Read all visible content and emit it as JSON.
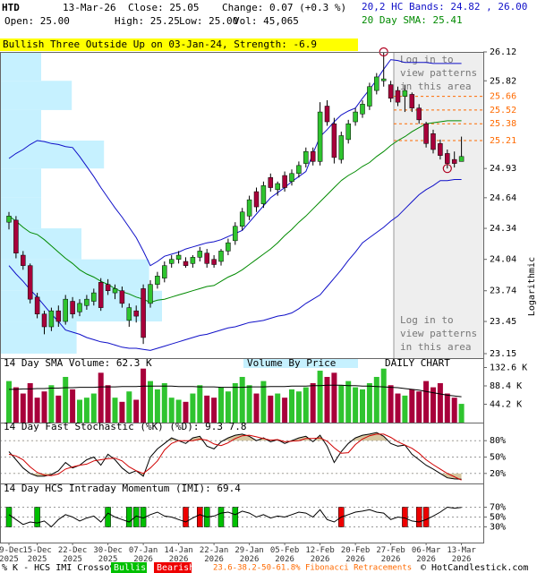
{
  "header": {
    "symbol": "HTD",
    "date": "13-Mar-26",
    "close": "Close: 25.05",
    "change": "Change: 0.07 (+0.3 %)",
    "open": "Open: 25.00",
    "high": "High: 25.25",
    "low": "Low: 25.00",
    "vol": "Vol: 45,065",
    "bands": "20,2 HC Bands: 24.82 , 26.00",
    "sma": "20 Day SMA: 25.41"
  },
  "banner": "Bullish Three Outside Up on 03-Jan-24, Strength: -6.9",
  "notice": [
    "Log in to",
    "view patterns",
    "in this area"
  ],
  "footer": {
    "prefix": "% K - HCS IMI Crossover,",
    "bullish": "Bullish",
    "bearish": "Bearish",
    "fib": "23.6-38.2-50-61.8% Fibonacci Retracements",
    "credit": "© HotCandlestick.com"
  },
  "chart_data": [
    {
      "type": "candlestick",
      "categories": [
        "09-Dec 2025",
        null,
        null,
        null,
        "15-Dec 2025",
        null,
        null,
        null,
        null,
        "22-Dec 2025",
        null,
        null,
        null,
        null,
        "30-Dec 2025",
        null,
        null,
        null,
        null,
        "07-Jan 2026",
        null,
        null,
        null,
        null,
        "14-Jan 2026",
        null,
        null,
        null,
        null,
        "22-Jan 2026",
        null,
        null,
        null,
        null,
        "29-Jan 2026",
        null,
        null,
        null,
        null,
        "05-Feb 2026",
        null,
        null,
        null,
        null,
        "12-Feb 2026",
        null,
        null,
        null,
        null,
        "20-Feb 2026",
        null,
        null,
        null,
        null,
        "27-Feb 2026",
        null,
        null,
        null,
        null,
        "06-Mar 2026",
        null,
        null,
        null,
        null,
        "13-Mar 2026"
      ],
      "open": [
        24.4,
        24.42,
        24.08,
        23.98,
        23.68,
        23.52,
        23.4,
        23.55,
        23.45,
        23.64,
        23.54,
        23.6,
        23.64,
        23.82,
        23.8,
        23.72,
        23.74,
        23.46,
        23.55,
        23.76,
        23.62,
        23.8,
        23.86,
        24.0,
        24.04,
        24.02,
        24.0,
        24.06,
        24.1,
        24.04,
        24.02,
        24.12,
        24.22,
        24.36,
        24.46,
        24.7,
        24.58,
        24.84,
        24.72,
        24.86,
        24.8,
        24.88,
        24.98,
        25.1,
        25.0,
        25.56,
        25.38,
        25.02,
        25.22,
        25.4,
        25.48,
        25.56,
        25.72,
        25.82,
        25.78,
        25.72,
        25.66,
        25.68,
        25.54,
        25.38,
        25.28,
        25.18,
        25.08,
        25.02,
        25.0
      ],
      "high": [
        24.5,
        24.46,
        24.12,
        24.0,
        23.72,
        23.55,
        23.58,
        23.6,
        23.7,
        23.68,
        23.66,
        23.7,
        23.76,
        23.86,
        23.85,
        23.8,
        23.78,
        23.62,
        23.6,
        23.8,
        23.84,
        23.92,
        24.02,
        24.08,
        24.12,
        24.06,
        24.08,
        24.16,
        24.14,
        24.08,
        24.14,
        24.24,
        24.4,
        24.54,
        24.66,
        24.74,
        24.8,
        24.88,
        24.8,
        24.9,
        24.92,
        25.0,
        25.14,
        25.14,
        25.6,
        25.62,
        25.44,
        25.3,
        25.42,
        25.54,
        25.62,
        25.8,
        25.9,
        26.12,
        25.82,
        25.76,
        25.78,
        25.7,
        25.58,
        25.4,
        25.32,
        25.22,
        25.12,
        25.1,
        25.25
      ],
      "low": [
        24.33,
        24.05,
        23.94,
        23.62,
        23.48,
        23.33,
        23.36,
        23.4,
        23.42,
        23.48,
        23.5,
        23.56,
        23.6,
        23.55,
        23.7,
        23.66,
        23.58,
        23.4,
        23.44,
        23.24,
        23.58,
        23.76,
        23.82,
        23.96,
        24.0,
        23.96,
        23.96,
        24.02,
        23.96,
        23.96,
        23.98,
        24.08,
        24.18,
        24.32,
        24.42,
        24.5,
        24.54,
        24.7,
        24.66,
        24.7,
        24.76,
        24.84,
        24.94,
        24.96,
        24.96,
        25.36,
        24.98,
        24.98,
        25.18,
        25.36,
        25.44,
        25.52,
        25.68,
        25.76,
        25.6,
        25.56,
        25.5,
        25.5,
        25.38,
        25.14,
        25.08,
        25.02,
        24.93,
        24.94,
        25.0
      ],
      "close": [
        24.46,
        24.1,
        23.98,
        23.66,
        23.52,
        23.4,
        23.55,
        23.45,
        23.66,
        23.52,
        23.62,
        23.66,
        23.72,
        23.58,
        23.74,
        23.76,
        23.62,
        23.58,
        23.5,
        23.3,
        23.8,
        23.88,
        23.98,
        24.04,
        24.08,
        23.98,
        24.06,
        24.12,
        24.0,
        23.99,
        24.12,
        24.2,
        24.36,
        24.5,
        24.62,
        24.55,
        24.76,
        24.74,
        24.78,
        24.74,
        24.88,
        24.96,
        25.1,
        25.0,
        25.5,
        25.4,
        25.04,
        25.26,
        25.38,
        25.5,
        25.58,
        25.76,
        25.86,
        25.84,
        25.64,
        25.6,
        25.72,
        25.54,
        25.42,
        25.18,
        25.12,
        25.06,
        24.98,
        24.98,
        25.05
      ],
      "up_color": "#2fc42f",
      "down_color": "#a8003a",
      "ylim": [
        23.15,
        26.12
      ],
      "log_scale": true,
      "yticks": [
        26.12,
        25.82,
        24.93,
        24.64,
        24.34,
        24.04,
        23.74,
        23.45,
        23.15
      ],
      "axis_label": "Logarithmic",
      "lines": [
        {
          "color": "#008a00",
          "values": [
            24.46,
            24.41,
            24.35,
            24.3,
            24.28,
            24.23,
            24.17,
            24.11,
            24.05,
            24.0,
            23.94,
            23.9,
            23.87,
            23.83,
            23.8,
            23.76,
            23.73,
            23.71,
            23.68,
            23.66,
            23.63,
            23.65,
            23.66,
            23.68,
            23.7,
            23.72,
            23.74,
            23.76,
            23.78,
            23.79,
            23.83,
            23.87,
            23.9,
            23.94,
            23.99,
            24.04,
            24.09,
            24.14,
            24.2,
            24.27,
            24.33,
            24.4,
            24.46,
            24.53,
            24.6,
            24.67,
            24.74,
            24.81,
            24.86,
            24.9,
            24.95,
            24.99,
            25.05,
            25.1,
            25.16,
            25.21,
            25.25,
            25.3,
            25.34,
            25.38,
            25.39,
            25.4,
            25.41,
            25.41,
            25.41
          ]
        },
        {
          "color": "#1010c8",
          "values": [
            25.03,
            25.08,
            25.12,
            25.17,
            25.21,
            25.2,
            25.18,
            25.17,
            25.15,
            25.14,
            25.05,
            24.95,
            24.85,
            24.74,
            24.64,
            24.54,
            24.45,
            24.35,
            24.25,
            24.12,
            23.98,
            24.02,
            24.07,
            24.09,
            24.11,
            24.14,
            24.16,
            24.18,
            24.2,
            24.21,
            24.23,
            24.26,
            24.29,
            24.32,
            24.4,
            24.48,
            24.56,
            24.64,
            24.69,
            24.74,
            24.8,
            24.85,
            24.9,
            25.08,
            25.25,
            25.32,
            25.4,
            25.47,
            25.51,
            25.54,
            25.64,
            25.73,
            25.83,
            25.94,
            26.04,
            26.03,
            26.01,
            26.01,
            26.01,
            26.01,
            26.0,
            26.0,
            26.0,
            26.0,
            26.0
          ]
        },
        {
          "color": "#1010c8",
          "values": [
            23.98,
            23.9,
            23.83,
            23.75,
            23.68,
            23.6,
            23.52,
            23.45,
            23.37,
            23.35,
            23.33,
            23.3,
            23.28,
            23.26,
            23.25,
            23.23,
            23.21,
            23.2,
            23.2,
            23.19,
            23.18,
            23.2,
            23.22,
            23.24,
            23.26,
            23.28,
            23.3,
            23.32,
            23.33,
            23.35,
            23.37,
            23.39,
            23.4,
            23.42,
            23.44,
            23.45,
            23.46,
            23.48,
            23.5,
            23.51,
            23.53,
            23.57,
            23.62,
            23.66,
            23.7,
            23.78,
            23.86,
            23.94,
            24.03,
            24.11,
            24.2,
            24.25,
            24.3,
            24.35,
            24.41,
            24.46,
            24.53,
            24.6,
            24.67,
            24.72,
            24.76,
            24.81,
            24.81,
            24.82,
            24.82
          ]
        }
      ],
      "fib_levels": {
        "color": "#ff6a00",
        "values": [
          25.66,
          25.52,
          25.38,
          25.21
        ]
      },
      "pattern_marks": {
        "color": "#b00020",
        "x": [
          53,
          62
        ],
        "values": [
          26.12,
          24.93
        ]
      },
      "volume_by_price": {
        "color": "#c6f1ff",
        "bins": [
          26.12,
          25.82,
          25.52,
          25.21,
          24.93,
          24.64,
          24.34,
          24.04,
          23.74,
          23.45,
          23.15
        ],
        "values": [
          25,
          44,
          25,
          64,
          25,
          25,
          50,
          92,
          100,
          47
        ]
      }
    },
    {
      "type": "bar",
      "title": "14 Day SMA Volume: 62.3 K",
      "annotations": [
        "Volume By Price",
        "DAILY CHART"
      ],
      "values": [
        100,
        85,
        70,
        95,
        60,
        75,
        90,
        65,
        110,
        80,
        55,
        60,
        70,
        120,
        90,
        60,
        50,
        75,
        55,
        130,
        100,
        80,
        95,
        60,
        55,
        50,
        70,
        90,
        65,
        60,
        85,
        75,
        95,
        110,
        90,
        70,
        100,
        65,
        70,
        60,
        80,
        75,
        85,
        95,
        125,
        110,
        120,
        90,
        100,
        85,
        80,
        95,
        110,
        130,
        90,
        70,
        65,
        80,
        75,
        100,
        85,
        95,
        70,
        60,
        45.1
      ],
      "ylim": [
        0,
        138
      ],
      "yticks": [
        {
          "value": 132.6,
          "label": "132.6 K"
        },
        {
          "value": 88.4,
          "label": "88.4 K"
        },
        {
          "value": 44.2,
          "label": "44.2 K"
        }
      ],
      "sma": {
        "color": "#000000",
        "values": [
          80,
          80,
          81,
          81,
          82,
          82,
          83,
          83,
          84,
          84,
          85,
          85,
          85,
          86,
          86,
          86,
          87,
          87,
          87,
          88,
          88,
          88,
          88,
          88,
          87,
          87,
          87,
          86,
          86,
          86,
          85,
          85,
          85,
          85,
          86,
          86,
          86,
          87,
          87,
          87,
          88,
          88,
          88,
          89,
          89,
          90,
          90,
          90,
          89,
          89,
          88,
          88,
          87,
          86,
          85,
          84,
          82,
          80,
          78,
          75,
          72,
          69,
          66,
          64,
          62.3
        ]
      }
    },
    {
      "type": "line",
      "title": "14 Day Fast Stochastic (%K) (%D): 9.3  7.8",
      "series": [
        {
          "color": "#000000",
          "values": [
            60,
            45,
            30,
            20,
            15,
            15,
            18,
            25,
            40,
            30,
            35,
            45,
            50,
            35,
            55,
            45,
            30,
            20,
            25,
            15,
            50,
            65,
            75,
            85,
            80,
            75,
            85,
            88,
            70,
            65,
            78,
            85,
            90,
            92,
            88,
            80,
            85,
            78,
            82,
            75,
            80,
            85,
            88,
            78,
            90,
            70,
            40,
            60,
            75,
            85,
            90,
            92,
            95,
            88,
            75,
            70,
            72,
            55,
            45,
            35,
            28,
            20,
            12,
            10,
            9.3
          ]
        },
        {
          "color": "#d00000",
          "values": [
            55,
            52,
            45,
            32,
            22,
            17,
            16,
            19,
            28,
            32,
            35,
            37,
            43,
            45,
            47,
            48,
            43,
            32,
            25,
            20,
            30,
            43,
            63,
            75,
            80,
            80,
            80,
            83,
            81,
            74,
            71,
            76,
            84,
            89,
            90,
            87,
            84,
            81,
            82,
            78,
            79,
            80,
            84,
            84,
            85,
            79,
            67,
            57,
            58,
            73,
            83,
            89,
            92,
            92,
            86,
            78,
            72,
            66,
            57,
            45,
            36,
            28,
            20,
            14,
            7.8
          ]
        }
      ],
      "ylim": [
        0,
        100
      ],
      "yticks": [
        {
          "value": 80,
          "label": "80%"
        },
        {
          "value": 50,
          "label": "50%"
        },
        {
          "value": 20,
          "label": "20%"
        }
      ],
      "shade_color": "#d6c7a0",
      "shade_above": 80,
      "shade_below": 20
    },
    {
      "type": "line",
      "title": "14 Day HCS Intraday Momentum (IMI): 69.4",
      "series": [
        {
          "color": "#000000",
          "values": [
            55,
            45,
            35,
            40,
            38,
            42,
            30,
            45,
            55,
            50,
            42,
            48,
            52,
            40,
            58,
            50,
            45,
            40,
            52,
            48,
            55,
            60,
            52,
            50,
            45,
            40,
            48,
            55,
            50,
            52,
            58,
            60,
            55,
            62,
            58,
            50,
            55,
            48,
            52,
            50,
            55,
            60,
            58,
            50,
            65,
            45,
            40,
            50,
            55,
            60,
            62,
            65,
            60,
            58,
            45,
            50,
            48,
            42,
            40,
            45,
            52,
            60,
            70,
            68,
            69.4
          ]
        }
      ],
      "ylim": [
        0,
        100
      ],
      "yticks": [
        {
          "value": 70,
          "label": "70%"
        },
        {
          "value": 50,
          "label": "50%"
        },
        {
          "value": 30,
          "label": "30%"
        }
      ],
      "signals": {
        "bullish": {
          "color": "#00c000",
          "x": [
            0,
            4,
            14,
            17,
            18,
            19,
            28,
            30,
            32
          ]
        },
        "bearish": {
          "color": "#ee0000",
          "x": [
            25,
            27,
            47,
            56,
            58,
            59
          ]
        }
      }
    }
  ]
}
